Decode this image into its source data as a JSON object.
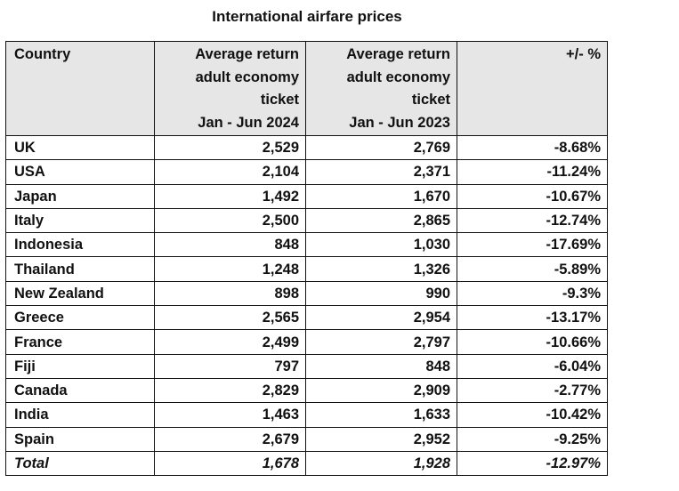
{
  "title": "International airfare prices",
  "table": {
    "headers": [
      {
        "lines": [
          "Country"
        ]
      },
      {
        "lines": [
          "Average return",
          "adult economy",
          "ticket",
          "Jan - Jun 2024"
        ]
      },
      {
        "lines": [
          "Average return",
          "adult economy",
          "ticket",
          "Jan - Jun 2023"
        ]
      },
      {
        "lines": [
          "+/- %"
        ]
      }
    ],
    "rows": [
      {
        "country": "UK",
        "y2024": "2,529",
        "y2023": "2,769",
        "change": "-8.68%"
      },
      {
        "country": "USA",
        "y2024": "2,104",
        "y2023": "2,371",
        "change": "-11.24%"
      },
      {
        "country": "Japan",
        "y2024": "1,492",
        "y2023": "1,670",
        "change": "-10.67%"
      },
      {
        "country": "Italy",
        "y2024": "2,500",
        "y2023": "2,865",
        "change": "-12.74%"
      },
      {
        "country": "Indonesia",
        "y2024": "848",
        "y2023": "1,030",
        "change": "-17.69%"
      },
      {
        "country": "Thailand",
        "y2024": "1,248",
        "y2023": "1,326",
        "change": "-5.89%"
      },
      {
        "country": "New Zealand",
        "y2024": "898",
        "y2023": "990",
        "change": "-9.3%"
      },
      {
        "country": "Greece",
        "y2024": "2,565",
        "y2023": "2,954",
        "change": "-13.17%"
      },
      {
        "country": "France",
        "y2024": "2,499",
        "y2023": "2,797",
        "change": "-10.66%"
      },
      {
        "country": "Fiji",
        "y2024": "797",
        "y2023": "848",
        "change": "-6.04%"
      },
      {
        "country": "Canada",
        "y2024": "2,829",
        "y2023": "2,909",
        "change": "-2.77%"
      },
      {
        "country": "India",
        "y2024": "1,463",
        "y2023": "1,633",
        "change": "-10.42%"
      },
      {
        "country": "Spain",
        "y2024": "2,679",
        "y2023": "2,952",
        "change": "-9.25%"
      }
    ],
    "total": {
      "country": "Total",
      "y2024": "1,678",
      "y2023": "1,928",
      "change": "-12.97%"
    }
  },
  "colors": {
    "header_bg": "#e6e6e6",
    "border": "#111111"
  }
}
